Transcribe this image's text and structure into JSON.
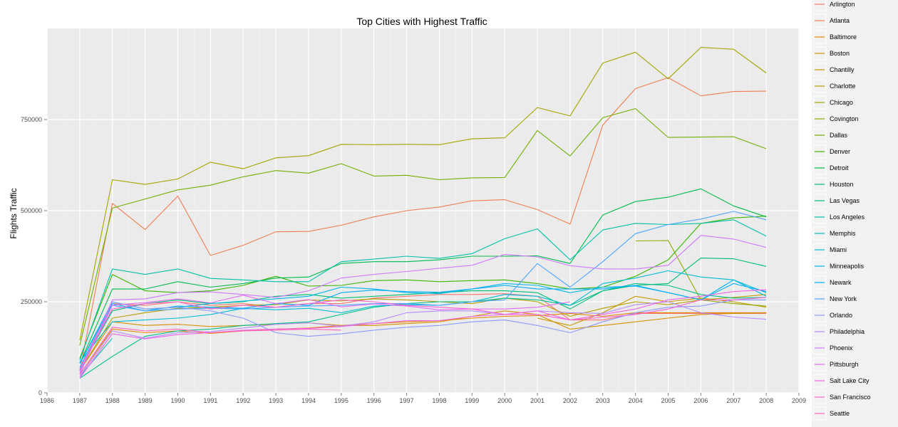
{
  "chart_data": {
    "type": "line",
    "title": "Top Cities with Highest Traffic",
    "xlabel": "",
    "ylabel": "Flights Traffic",
    "xlim": [
      1986,
      2009
    ],
    "ylim": [
      0,
      1000000
    ],
    "x_ticks": [
      1986,
      1987,
      1988,
      1989,
      1990,
      1991,
      1992,
      1993,
      1994,
      1995,
      1996,
      1997,
      1998,
      1999,
      2000,
      2001,
      2002,
      2003,
      2004,
      2005,
      2006,
      2007,
      2008,
      2009
    ],
    "y_ticks": [
      {
        "value": 0,
        "label": "0"
      },
      {
        "value": 250000,
        "label": "250000"
      },
      {
        "value": 500000,
        "label": "500000"
      },
      {
        "value": 750000,
        "label": "750000"
      }
    ],
    "grid": true,
    "legend_position": "right",
    "x": [
      1987,
      1988,
      1989,
      1990,
      1991,
      1992,
      1993,
      1994,
      1995,
      1996,
      1997,
      1998,
      1999,
      2000,
      2001,
      2002,
      2003,
      2004,
      2005,
      2006,
      2007,
      2008
    ],
    "series": [
      {
        "name": "Arlington",
        "color": "#F8766D",
        "values": [
          70000,
          245000,
          240000,
          250000,
          240000,
          245000,
          235000,
          245000,
          245000,
          260000,
          265000,
          270000,
          270000,
          272000,
          265000,
          200000,
          200000,
          218000,
          218000,
          218000,
          218000,
          218000
        ]
      },
      {
        "name": "Atlanta",
        "color": "#F17D50",
        "values": [
          60000,
          520000,
          448000,
          540000,
          377000,
          405000,
          442000,
          443000,
          460000,
          483000,
          500000,
          510000,
          527000,
          530000,
          503000,
          463000,
          735000,
          835000,
          865000,
          815000,
          827000,
          828000
        ]
      },
      {
        "name": "Baltimore",
        "color": "#E58700",
        "values": [
          50000,
          175000,
          165000,
          170000,
          163000,
          170000,
          175000,
          178000,
          185000,
          190000,
          195000,
          198000,
          205000,
          210000,
          212000,
          218000,
          210000,
          220000,
          220000,
          220000,
          220000,
          220000
        ]
      },
      {
        "name": "Boston",
        "color": "#D89000",
        "values": [
          60000,
          195000,
          185000,
          188000,
          182000,
          185000,
          188000,
          192000,
          185000,
          185000,
          190000,
          195000,
          210000,
          225000,
          215000,
          175000,
          185000,
          195000,
          205000,
          215000,
          218000,
          220000
        ]
      },
      {
        "name": "Chantilly",
        "color": "#C99800",
        "values": [
          null,
          null,
          null,
          null,
          null,
          null,
          null,
          null,
          null,
          null,
          null,
          null,
          null,
          null,
          205000,
          185000,
          220000,
          265000,
          250000,
          260000,
          250000,
          235000
        ]
      },
      {
        "name": "Charlotte",
        "color": "#B79F00",
        "values": [
          60000,
          205000,
          220000,
          232000,
          235000,
          240000,
          242000,
          255000,
          252000,
          258000,
          255000,
          250000,
          245000,
          260000,
          250000,
          210000,
          232000,
          250000,
          242000,
          255000,
          262000,
          270000
        ]
      },
      {
        "name": "Chicago",
        "color": "#A3A500",
        "values": [
          145000,
          585000,
          572000,
          587000,
          633000,
          615000,
          645000,
          651000,
          682000,
          681000,
          682000,
          681000,
          697000,
          700000,
          783000,
          760000,
          905000,
          935000,
          862000,
          948000,
          943000,
          878000
        ]
      },
      {
        "name": "Covington",
        "color": "#8CAB00",
        "values": [
          null,
          null,
          null,
          null,
          null,
          null,
          null,
          null,
          null,
          null,
          null,
          null,
          null,
          null,
          null,
          null,
          null,
          417000,
          418000,
          255000,
          245000,
          238000
        ]
      },
      {
        "name": "Dallas",
        "color": "#6FB000",
        "values": [
          130000,
          507000,
          532000,
          557000,
          570000,
          593000,
          610000,
          603000,
          629000,
          595000,
          597000,
          585000,
          590000,
          591000,
          720000,
          650000,
          755000,
          780000,
          701000,
          702000,
          703000,
          670000
        ]
      },
      {
        "name": "Denver",
        "color": "#39B600",
        "values": [
          95000,
          325000,
          280000,
          275000,
          280000,
          295000,
          320000,
          293000,
          295000,
          308000,
          310000,
          305000,
          308000,
          310000,
          300000,
          285000,
          290000,
          320000,
          365000,
          465000,
          480000,
          485000
        ]
      },
      {
        "name": "Detroit",
        "color": "#00BB4E",
        "values": [
          80000,
          285000,
          285000,
          305000,
          290000,
          300000,
          315000,
          318000,
          355000,
          360000,
          360000,
          365000,
          375000,
          375000,
          376000,
          355000,
          488000,
          525000,
          537000,
          560000,
          513000,
          483000
        ]
      },
      {
        "name": "Houston",
        "color": "#00BE70",
        "values": [
          65000,
          225000,
          245000,
          255000,
          245000,
          250000,
          265000,
          270000,
          260000,
          265000,
          270000,
          275000,
          280000,
          280000,
          275000,
          230000,
          280000,
          295000,
          300000,
          370000,
          368000,
          347000
        ]
      },
      {
        "name": "Las Vegas",
        "color": "#00BF8C",
        "values": [
          40000,
          100000,
          155000,
          170000,
          175000,
          185000,
          190000,
          195000,
          215000,
          235000,
          245000,
          250000,
          250000,
          260000,
          255000,
          240000,
          280000,
          300000,
          295000,
          270000,
          260000,
          262000
        ]
      },
      {
        "name": "Los Angeles",
        "color": "#00C0A7",
        "values": [
          90000,
          340000,
          325000,
          340000,
          314000,
          310000,
          305000,
          305000,
          360000,
          367000,
          375000,
          369000,
          382000,
          423000,
          450000,
          365000,
          447000,
          465000,
          462000,
          465000,
          475000,
          430000
        ]
      },
      {
        "name": "Memphis",
        "color": "#00BFC0",
        "values": [
          45000,
          150000,
          null,
          null,
          null,
          null,
          null,
          null,
          null,
          null,
          null,
          null,
          null,
          null,
          null,
          null,
          null,
          null,
          null,
          null,
          null,
          null
        ]
      },
      {
        "name": "Miami",
        "color": "#00BCD6",
        "values": [
          85000,
          195000,
          200000,
          205000,
          215000,
          232000,
          228000,
          232000,
          220000,
          238000,
          242000,
          240000,
          250000,
          270000,
          265000,
          240000,
          300000,
          315000,
          335000,
          318000,
          310000,
          275000
        ]
      },
      {
        "name": "Minneapolis",
        "color": "#00B7E9",
        "values": [
          80000,
          250000,
          230000,
          235000,
          245000,
          252000,
          258000,
          265000,
          290000,
          285000,
          275000,
          272000,
          285000,
          300000,
          295000,
          275000,
          290000,
          293000,
          275000,
          255000,
          310000,
          265000
        ]
      },
      {
        "name": "Newark",
        "color": "#00AEFA",
        "values": [
          80000,
          245000,
          225000,
          238000,
          235000,
          232000,
          245000,
          240000,
          275000,
          282000,
          278000,
          276000,
          285000,
          295000,
          285000,
          285000,
          285000,
          295000,
          275000,
          255000,
          300000,
          278000
        ]
      },
      {
        "name": "New York",
        "color": "#4DA6FF",
        "values": [
          70000,
          240000,
          225000,
          230000,
          232000,
          230000,
          235000,
          238000,
          240000,
          245000,
          245000,
          240000,
          250000,
          255000,
          355000,
          290000,
          360000,
          437000,
          462000,
          477000,
          498000,
          475000
        ]
      },
      {
        "name": "Orlando",
        "color": "#8B9BFF",
        "values": [
          60000,
          250000,
          230000,
          235000,
          225000,
          205000,
          165000,
          155000,
          162000,
          172000,
          180000,
          185000,
          195000,
          200000,
          185000,
          165000,
          195000,
          220000,
          235000,
          238000,
          255000,
          255000
        ]
      },
      {
        "name": "Philadelphia",
        "color": "#B58CFF",
        "values": [
          45000,
          170000,
          150000,
          165000,
          168000,
          178000,
          188000,
          192000,
          183000,
          195000,
          220000,
          225000,
          225000,
          215000,
          225000,
          220000,
          218000,
          242000,
          250000,
          220000,
          208000,
          202000
        ]
      },
      {
        "name": "Phoenix",
        "color": "#D079FF",
        "values": [
          50000,
          255000,
          258000,
          275000,
          277000,
          270000,
          262000,
          280000,
          315000,
          325000,
          333000,
          342000,
          350000,
          380000,
          373000,
          349000,
          340000,
          340000,
          350000,
          432000,
          422000,
          399000
        ]
      },
      {
        "name": "Pittsburgh",
        "color": "#E36EF6",
        "values": [
          55000,
          240000,
          248000,
          258000,
          247000,
          268000,
          245000,
          256000,
          236000,
          244000,
          238000,
          228000,
          230000,
          230000,
          235000,
          250000,
          null,
          null,
          null,
          null,
          null,
          null
        ]
      },
      {
        "name": "Salt Lake City",
        "color": "#F163E8",
        "values": [
          40000,
          162000,
          148000,
          160000,
          165000,
          172000,
          175000,
          177000,
          182000,
          190000,
          198000,
          198000,
          210000,
          215000,
          225000,
          200000,
          215000,
          230000,
          255000,
          265000,
          278000,
          283000
        ]
      },
      {
        "name": "San Francisco",
        "color": "#FA62D6",
        "values": [
          65000,
          230000,
          245000,
          250000,
          230000,
          240000,
          235000,
          245000,
          255000,
          250000,
          240000,
          235000,
          230000,
          215000,
          215000,
          200000,
          207000,
          215000,
          230000,
          255000,
          255000,
          262000
        ]
      },
      {
        "name": "Seattle",
        "color": "#FF62BC",
        "values": [
          50000,
          180000,
          170000,
          175000,
          165000,
          170000,
          172000,
          175000,
          172000,
          null,
          null,
          null,
          null,
          null,
          null,
          null,
          null,
          null,
          null,
          null,
          null,
          null
        ]
      }
    ]
  }
}
